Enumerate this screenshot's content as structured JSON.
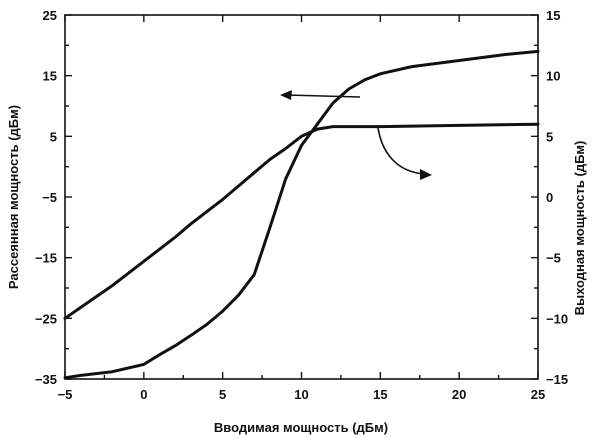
{
  "chart_data": {
    "type": "line",
    "xlabel": "Вводимая мощность (дБм)",
    "ylabel_left": "Рассеянная мощность (дБм)",
    "ylabel_right": "Выходная мощность (дБм)",
    "xlim": [
      -5,
      25
    ],
    "ylim_left": [
      -35,
      25
    ],
    "ylim_right": [
      -15,
      15
    ],
    "x_ticks": [
      "−5",
      "0",
      "5",
      "10",
      "15",
      "20",
      "25"
    ],
    "y_left_ticks": [
      "−35",
      "−25",
      "−15",
      "−5",
      "5",
      "15",
      "25"
    ],
    "y_right_ticks": [
      "−15",
      "−10",
      "−5",
      "0",
      "5",
      "10",
      "15"
    ],
    "grid": false,
    "series": [
      {
        "axis": "left",
        "x": [
          -5,
          -4,
          -2,
          0,
          1,
          2,
          3,
          4,
          5,
          6,
          7,
          8,
          9,
          10,
          11,
          12,
          13,
          14,
          15,
          17,
          20,
          23,
          25
        ],
        "y": [
          -34.8,
          -34.4,
          -33.8,
          -32.6,
          -31,
          -29.5,
          -27.8,
          -26,
          -23.8,
          -21.2,
          -17.8,
          -10,
          -2,
          3.5,
          7,
          10.5,
          12.8,
          14.3,
          15.3,
          16.5,
          17.5,
          18.5,
          19
        ]
      },
      {
        "axis": "right",
        "x": [
          -5,
          -4,
          -3,
          -2,
          -1,
          0,
          1,
          2,
          3,
          4,
          5,
          6,
          7,
          8,
          9,
          10,
          11,
          12,
          13,
          15,
          20,
          25
        ],
        "y": [
          -10,
          -9.1,
          -8.2,
          -7.3,
          -6.3,
          -5.3,
          -4.3,
          -3.3,
          -2.2,
          -1.2,
          -0.2,
          0.9,
          2.0,
          3.1,
          4.0,
          5.0,
          5.6,
          5.8,
          5.8,
          5.8,
          5.9,
          6.0
        ]
      }
    ]
  }
}
